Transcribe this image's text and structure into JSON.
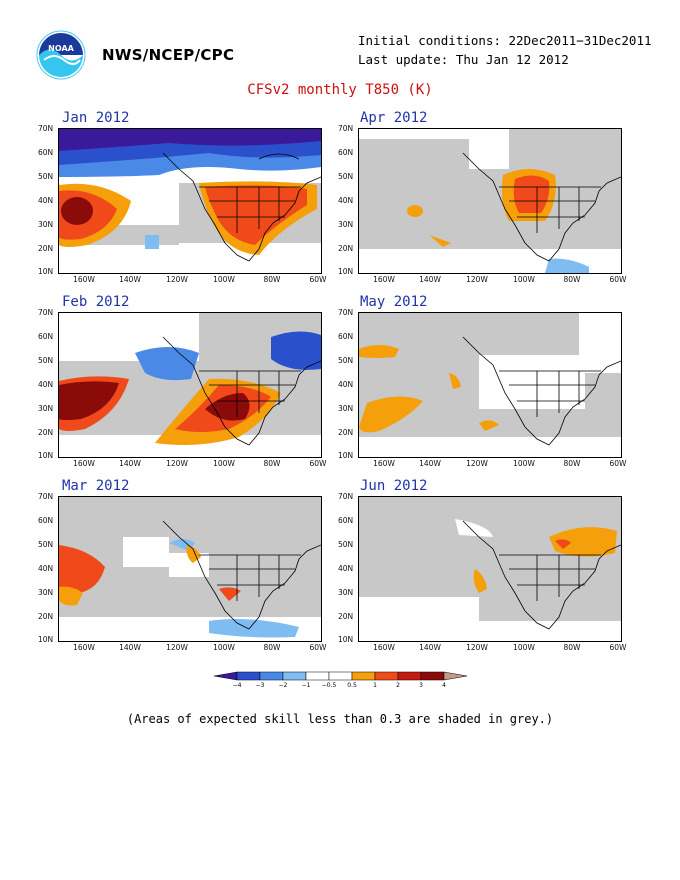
{
  "header": {
    "org": "NWS/NCEP/CPC",
    "initial_conditions": "Initial conditions: 22Dec2011−31Dec2011",
    "last_update": "Last update: Thu Jan 12 2012",
    "title": "CFSv2 monthly T850 (K)"
  },
  "axes": {
    "lat_labels": [
      "70N",
      "60N",
      "50N",
      "40N",
      "30N",
      "20N",
      "10N"
    ],
    "lon_labels": [
      "160W",
      "140W",
      "120W",
      "100W",
      "80W",
      "60W"
    ]
  },
  "panels": [
    {
      "title": "Jan 2012"
    },
    {
      "title": "Apr 2012"
    },
    {
      "title": "Feb 2012"
    },
    {
      "title": "May 2012"
    },
    {
      "title": "Mar 2012"
    },
    {
      "title": "Jun 2012"
    }
  ],
  "colorbar": {
    "labels": [
      "−4",
      "−3",
      "−2",
      "−1",
      "−0.5",
      "0.5",
      "1",
      "2",
      "3",
      "4"
    ],
    "colors": [
      "#3a1a9a",
      "#2a50cc",
      "#4a8ae6",
      "#7fbcf2",
      "#ffffff",
      "#ffffff",
      "#f5a00a",
      "#f04a1a",
      "#c21a10",
      "#8b0b0b",
      "#c49a8a"
    ]
  },
  "footnote": "(Areas of expected skill less than 0.3 are shaded in grey.)"
}
